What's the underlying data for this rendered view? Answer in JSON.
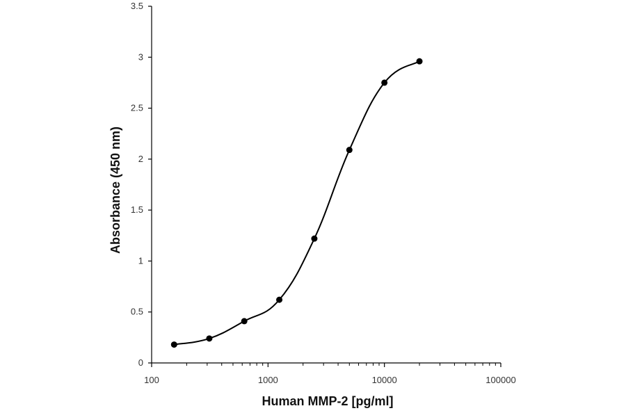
{
  "chart_data": {
    "type": "line",
    "title": "",
    "xlabel": "Human MMP-2 [pg/ml]",
    "ylabel": "Absorbance (450 nm)",
    "x_scale": "log",
    "xlim": [
      100,
      100000
    ],
    "ylim": [
      0,
      3.5
    ],
    "x_ticks": [
      "100",
      "1000",
      "10000",
      "100000"
    ],
    "y_ticks": [
      "0",
      "0.5",
      "1",
      "1.5",
      "2",
      "2.5",
      "3",
      "3.5"
    ],
    "grid": false,
    "legend": "none",
    "series": [
      {
        "marker": "circle",
        "smooth": true,
        "color": "#000000",
        "x": [
          156,
          313,
          625,
          1250,
          2500,
          5000,
          10000,
          20000
        ],
        "y": [
          0.18,
          0.24,
          0.41,
          0.62,
          1.22,
          2.09,
          2.75,
          2.96
        ]
      }
    ]
  }
}
